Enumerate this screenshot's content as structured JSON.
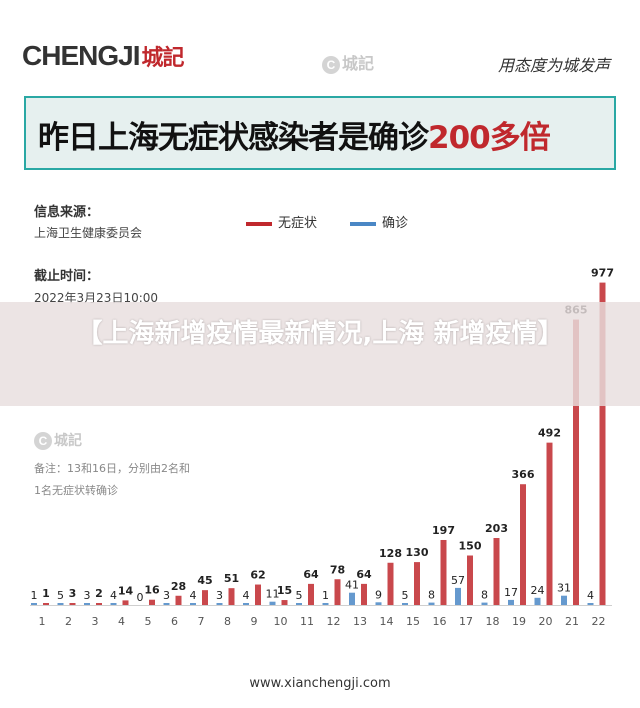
{
  "header": {
    "logo_text": "CHENGJI",
    "logo_cn": "城記",
    "watermark": "城記",
    "slogan": "用态度为城发声"
  },
  "banner": {
    "text": "昨日上海无症状感染者是确诊",
    "highlight": "200多倍"
  },
  "info": {
    "source_label": "信息来源：",
    "source_value": "上海卫生健康委员会",
    "deadline_label": "截止时间：",
    "deadline_value": "2022年3月23日10:00"
  },
  "overlay": {
    "title": "【上海新增疫情最新情况,上海 新增疫情】"
  },
  "note": {
    "line1": "备注：13和16日，分别由2名和",
    "line2": "1名无症状转确诊"
  },
  "footer": {
    "url": "www.xianchengji.com"
  },
  "colors": {
    "asymptomatic": "#c0282d",
    "confirmed": "#4a87c5",
    "banner_border": "#2aa8a4"
  },
  "chart_data": {
    "type": "bar",
    "categories": [
      "1",
      "2",
      "3",
      "4",
      "5",
      "6",
      "7",
      "8",
      "9",
      "10",
      "11",
      "12",
      "13",
      "14",
      "15",
      "16",
      "17",
      "18",
      "19",
      "20",
      "21",
      "22"
    ],
    "series": [
      {
        "name": "无症状",
        "values": [
          1,
          3,
          2,
          14,
          16,
          28,
          45,
          51,
          62,
          15,
          64,
          78,
          64,
          128,
          130,
          197,
          150,
          203,
          366,
          492,
          865,
          977
        ]
      },
      {
        "name": "确诊",
        "values": [
          1,
          5,
          3,
          4,
          0,
          3,
          4,
          3,
          4,
          11,
          5,
          1,
          41,
          9,
          5,
          8,
          57,
          8,
          17,
          24,
          31,
          4
        ]
      }
    ],
    "ylim": [
      0,
      1000
    ],
    "legend_position": "top"
  }
}
